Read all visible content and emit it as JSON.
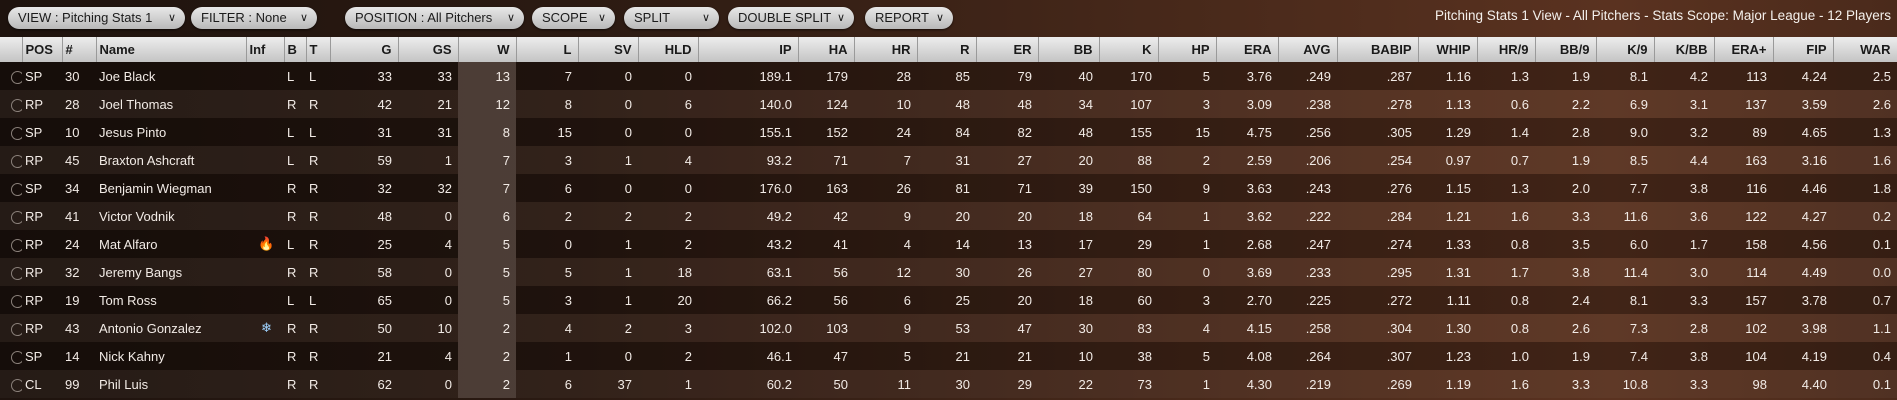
{
  "toolbar": {
    "buttons": [
      {
        "label": "VIEW : Pitching Stats 1"
      },
      {
        "label": "FILTER : None"
      },
      {
        "label": "POSITION : All Pitchers"
      },
      {
        "label": "SCOPE"
      },
      {
        "label": "SPLIT"
      },
      {
        "label": "DOUBLE SPLIT"
      },
      {
        "label": "REPORT"
      }
    ],
    "chevron": "∨",
    "title": "Pitching Stats 1 View - All Pitchers - Stats Scope: Major League - 12 Players"
  },
  "table": {
    "sorted_column": "W",
    "columns": [
      "",
      "POS",
      "#",
      "Name",
      "Inf",
      "B",
      "T",
      "G",
      "GS",
      "W",
      "L",
      "SV",
      "HLD",
      "IP",
      "HA",
      "HR",
      "R",
      "ER",
      "BB",
      "K",
      "HP",
      "ERA",
      "AVG",
      "BABIP",
      "WHIP",
      "HR/9",
      "BB/9",
      "K/9",
      "K/BB",
      "ERA+",
      "FIP",
      "WAR"
    ],
    "rows": [
      [
        "",
        "SP",
        "30",
        "Joe Black",
        "",
        "L",
        "L",
        "33",
        "33",
        "13",
        "7",
        "0",
        "0",
        "189.1",
        "179",
        "28",
        "85",
        "79",
        "40",
        "170",
        "5",
        "3.76",
        ".249",
        ".287",
        "1.16",
        "1.3",
        "1.9",
        "8.1",
        "4.2",
        "113",
        "4.24",
        "2.5"
      ],
      [
        "",
        "RP",
        "28",
        "Joel Thomas",
        "",
        "R",
        "R",
        "42",
        "21",
        "12",
        "8",
        "0",
        "6",
        "140.0",
        "124",
        "10",
        "48",
        "48",
        "34",
        "107",
        "3",
        "3.09",
        ".238",
        ".278",
        "1.13",
        "0.6",
        "2.2",
        "6.9",
        "3.1",
        "137",
        "3.59",
        "2.6"
      ],
      [
        "",
        "SP",
        "10",
        "Jesus Pinto",
        "",
        "L",
        "L",
        "31",
        "31",
        "8",
        "15",
        "0",
        "0",
        "155.1",
        "152",
        "24",
        "84",
        "82",
        "48",
        "155",
        "15",
        "4.75",
        ".256",
        ".305",
        "1.29",
        "1.4",
        "2.8",
        "9.0",
        "3.2",
        "89",
        "4.65",
        "1.3"
      ],
      [
        "",
        "RP",
        "45",
        "Braxton Ashcraft",
        "",
        "L",
        "R",
        "59",
        "1",
        "7",
        "3",
        "1",
        "4",
        "93.2",
        "71",
        "7",
        "31",
        "27",
        "20",
        "88",
        "2",
        "2.59",
        ".206",
        ".254",
        "0.97",
        "0.7",
        "1.9",
        "8.5",
        "4.4",
        "163",
        "3.16",
        "1.6"
      ],
      [
        "",
        "SP",
        "34",
        "Benjamin Wiegman",
        "",
        "R",
        "R",
        "32",
        "32",
        "7",
        "6",
        "0",
        "0",
        "176.0",
        "163",
        "26",
        "81",
        "71",
        "39",
        "150",
        "9",
        "3.63",
        ".243",
        ".276",
        "1.15",
        "1.3",
        "2.0",
        "7.7",
        "3.8",
        "116",
        "4.46",
        "1.8"
      ],
      [
        "",
        "RP",
        "41",
        "Victor Vodnik",
        "",
        "R",
        "R",
        "48",
        "0",
        "6",
        "2",
        "2",
        "2",
        "49.2",
        "42",
        "9",
        "20",
        "20",
        "18",
        "64",
        "1",
        "3.62",
        ".222",
        ".284",
        "1.21",
        "1.6",
        "3.3",
        "11.6",
        "3.6",
        "122",
        "4.27",
        "0.2"
      ],
      [
        "",
        "RP",
        "24",
        "Mat Alfaro",
        "fire",
        "L",
        "R",
        "25",
        "4",
        "5",
        "0",
        "1",
        "2",
        "43.2",
        "41",
        "4",
        "14",
        "13",
        "17",
        "29",
        "1",
        "2.68",
        ".247",
        ".274",
        "1.33",
        "0.8",
        "3.5",
        "6.0",
        "1.7",
        "158",
        "4.56",
        "0.1"
      ],
      [
        "",
        "RP",
        "32",
        "Jeremy Bangs",
        "",
        "R",
        "R",
        "58",
        "0",
        "5",
        "5",
        "1",
        "18",
        "63.1",
        "56",
        "12",
        "30",
        "26",
        "27",
        "80",
        "0",
        "3.69",
        ".233",
        ".295",
        "1.31",
        "1.7",
        "3.8",
        "11.4",
        "3.0",
        "114",
        "4.49",
        "0.0"
      ],
      [
        "",
        "RP",
        "19",
        "Tom Ross",
        "",
        "L",
        "L",
        "65",
        "0",
        "5",
        "3",
        "1",
        "20",
        "66.2",
        "56",
        "6",
        "25",
        "20",
        "18",
        "60",
        "3",
        "2.70",
        ".225",
        ".272",
        "1.11",
        "0.8",
        "2.4",
        "8.1",
        "3.3",
        "157",
        "3.78",
        "0.7"
      ],
      [
        "",
        "RP",
        "43",
        "Antonio Gonzalez",
        "snowflake",
        "R",
        "R",
        "50",
        "10",
        "2",
        "4",
        "2",
        "3",
        "102.0",
        "103",
        "9",
        "53",
        "47",
        "30",
        "83",
        "4",
        "4.15",
        ".258",
        ".304",
        "1.30",
        "0.8",
        "2.6",
        "7.3",
        "2.8",
        "102",
        "3.98",
        "1.1"
      ],
      [
        "",
        "SP",
        "14",
        "Nick Kahny",
        "",
        "R",
        "R",
        "21",
        "4",
        "2",
        "1",
        "0",
        "2",
        "46.1",
        "47",
        "5",
        "21",
        "21",
        "10",
        "38",
        "5",
        "4.08",
        ".264",
        ".307",
        "1.23",
        "1.0",
        "1.9",
        "7.4",
        "3.8",
        "104",
        "4.19",
        "0.4"
      ],
      [
        "",
        "CL",
        "99",
        "Phil Luis",
        "",
        "R",
        "R",
        "62",
        "0",
        "2",
        "6",
        "37",
        "1",
        "60.2",
        "50",
        "11",
        "30",
        "29",
        "22",
        "73",
        "1",
        "4.30",
        ".219",
        ".269",
        "1.19",
        "1.6",
        "3.3",
        "10.8",
        "3.3",
        "98",
        "4.40",
        "0.1"
      ]
    ]
  },
  "colors": {
    "fire": "#ff5a1f",
    "snowflake": "#9fd2ff",
    "header": "#d8d8d8"
  }
}
